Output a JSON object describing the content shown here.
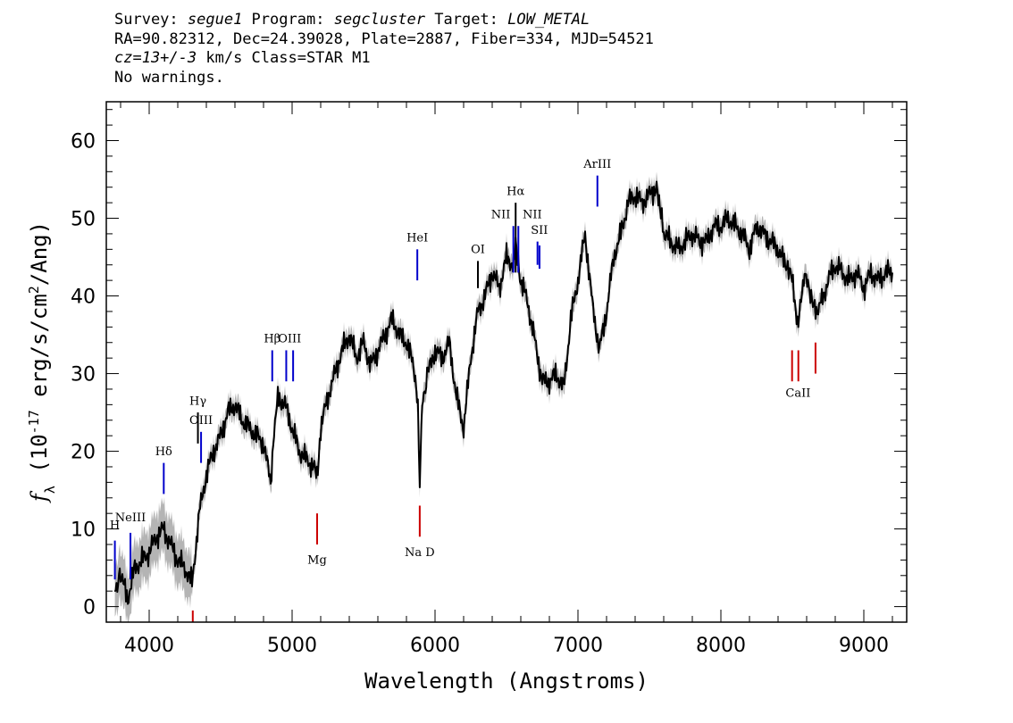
{
  "header": {
    "line1": {
      "survey_label": "Survey: ",
      "survey": "segue1",
      "program_label": " Program: ",
      "program": "segcluster",
      "target_label": " Target: ",
      "target": "LOW_METAL"
    },
    "line2": "RA=90.82312, Dec=24.39028, Plate=2887, Fiber=334, MJD=54521",
    "line3": {
      "cz": "cz=13+/-3",
      "rest": " km/s Class=STAR M1"
    },
    "line4": "No warnings."
  },
  "chart_data": {
    "type": "line",
    "xlabel": "Wavelength (Angstroms)",
    "ylabel": "f_λ (10^-17 erg/s/cm^2/Ang)",
    "xlim": [
      3700,
      9300
    ],
    "ylim": [
      -2,
      65
    ],
    "xticks": [
      4000,
      5000,
      6000,
      7000,
      8000,
      9000
    ],
    "yticks": [
      0,
      10,
      20,
      30,
      40,
      50,
      60
    ],
    "colors": {
      "flux": "#000000",
      "error_band": "#b4b4b4",
      "emission": "#0000cc",
      "absorption": "#cc0000"
    },
    "series": [
      {
        "x": [
          3760,
          3800,
          3850,
          3900,
          3950,
          4000,
          4050,
          4100,
          4150,
          4200,
          4250,
          4300,
          4350,
          4400,
          4450,
          4500,
          4550,
          4600,
          4650,
          4700,
          4750,
          4800,
          4850,
          4880,
          4900,
          4950,
          5000,
          5050,
          5100,
          5150,
          5180,
          5200,
          5250,
          5300,
          5350,
          5400,
          5450,
          5500,
          5550,
          5600,
          5650,
          5700,
          5750,
          5800,
          5850,
          5880,
          5893,
          5910,
          5950,
          6000,
          6050,
          6100,
          6150,
          6200,
          6250,
          6300,
          6350,
          6400,
          6450,
          6500,
          6550,
          6564,
          6600,
          6650,
          6700,
          6750,
          6800,
          6850,
          6900,
          6950,
          7000,
          7050,
          7100,
          7150,
          7200,
          7250,
          7300,
          7350,
          7400,
          7450,
          7500,
          7550,
          7580,
          7600,
          7650,
          7700,
          7750,
          7800,
          7850,
          7900,
          7950,
          8000,
          8050,
          8100,
          8150,
          8200,
          8250,
          8300,
          8350,
          8400,
          8450,
          8498,
          8542,
          8580,
          8620,
          8662,
          8700,
          8750,
          8800,
          8850,
          8900,
          8950,
          9000,
          9050,
          9100,
          9150,
          9200
        ],
        "y": [
          2,
          4,
          1,
          5,
          6,
          7,
          9,
          10,
          8,
          6,
          5,
          3,
          12,
          17,
          20,
          22,
          25,
          26,
          24,
          23,
          22,
          21,
          16,
          24,
          27,
          26,
          23,
          20,
          19,
          18,
          17,
          23,
          27,
          30,
          33,
          35,
          32,
          34,
          31,
          33,
          35,
          37,
          35,
          34,
          31,
          26,
          16,
          26,
          30,
          33,
          32,
          34,
          27,
          23,
          32,
          38,
          40,
          43,
          41,
          45,
          44,
          47,
          42,
          39,
          34,
          29,
          29,
          30,
          28,
          37,
          42,
          48,
          39,
          33,
          38,
          45,
          48,
          52,
          53,
          52,
          53,
          54,
          51,
          48,
          47,
          46,
          47,
          48,
          47,
          47,
          49,
          49,
          50,
          49,
          48,
          46,
          49,
          48,
          47,
          46,
          44,
          42,
          36,
          43,
          41,
          38,
          39,
          42,
          44,
          43,
          42,
          43,
          41,
          43,
          42,
          43,
          43
        ]
      }
    ],
    "annotations": {
      "emission_lines": [
        "H",
        "NeIII",
        "Hδ",
        "Hγ",
        "OIII",
        "Hβ",
        "OIII",
        "HeI",
        "OI",
        "NII",
        "Hα",
        "NII",
        "SII",
        "ArIII"
      ],
      "absorption_lines": [
        "Mg",
        "Na D",
        "CaII"
      ]
    }
  }
}
